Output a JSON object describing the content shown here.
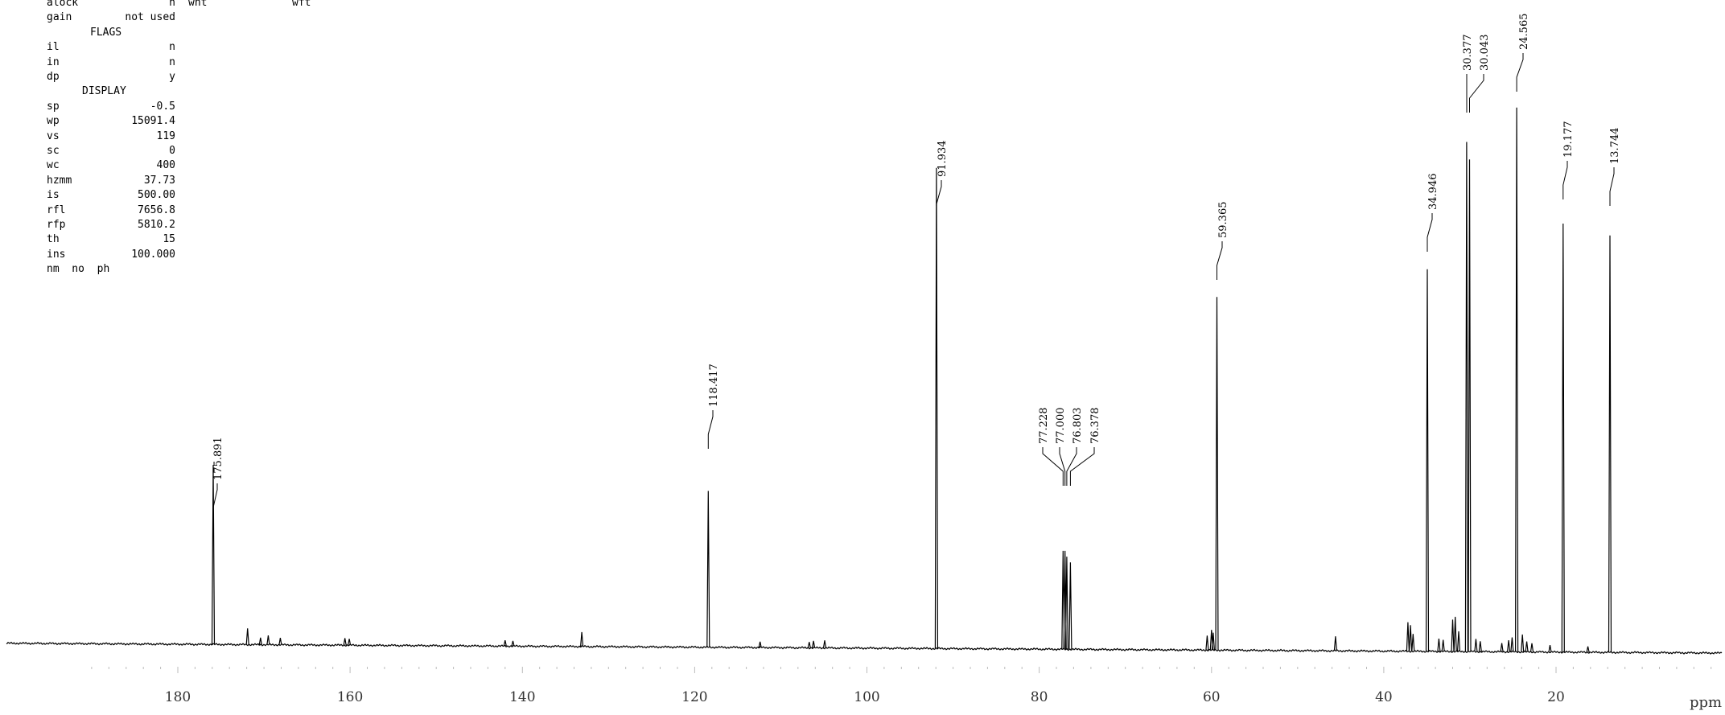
{
  "params": {
    "rows": [
      {
        "key": "alock",
        "value": "n"
      },
      {
        "key": "gain",
        "value": "not used"
      },
      {
        "header": "FLAGS"
      },
      {
        "key": "il",
        "value": "n"
      },
      {
        "key": "in",
        "value": "n"
      },
      {
        "key": "dp",
        "value": "y"
      },
      {
        "header": "DISPLAY"
      },
      {
        "key": "sp",
        "value": "-0.5"
      },
      {
        "key": "wp",
        "value": "15091.4"
      },
      {
        "key": "vs",
        "value": "119"
      },
      {
        "key": "sc",
        "value": "0"
      },
      {
        "key": "wc",
        "value": "400"
      },
      {
        "key": "hzmm",
        "value": "37.73"
      },
      {
        "key": "is",
        "value": "500.00"
      },
      {
        "key": "rfl",
        "value": "7656.8"
      },
      {
        "key": "rfp",
        "value": "5810.2"
      },
      {
        "key": "th",
        "value": "15"
      },
      {
        "key": "ins",
        "value": "100.000"
      }
    ],
    "footer": "nm  no  ph",
    "extra1": "wnt",
    "extra2": "wft"
  },
  "chart_data": {
    "type": "line",
    "x_axis": {
      "unit": "ppm",
      "range": [
        -8.5,
        200.5
      ],
      "reversed": true,
      "ticks": [
        180,
        160,
        140,
        120,
        100,
        80,
        60,
        40,
        20
      ],
      "tick_labels": [
        "180",
        "160",
        "140",
        "120",
        "100",
        "80",
        "60",
        "40",
        "20"
      ]
    },
    "grid": false,
    "peaks": [
      {
        "ppm": 175.891,
        "label": "175.891",
        "intensity": 0.31
      },
      {
        "ppm": 118.417,
        "label": "118.417",
        "intensity": 0.27
      },
      {
        "ppm": 91.934,
        "label": "91.934",
        "intensity": 0.83
      },
      {
        "ppm": 77.228,
        "label": "77.228",
        "intensity": 0.17
      },
      {
        "ppm": 77.0,
        "label": "77.000",
        "intensity": 0.17
      },
      {
        "ppm": 76.803,
        "label": "76.803",
        "intensity": 0.16
      },
      {
        "ppm": 76.378,
        "label": "76.378",
        "intensity": 0.15
      },
      {
        "ppm": 59.365,
        "label": "59.365",
        "intensity": 0.61
      },
      {
        "ppm": 34.946,
        "label": "34.946",
        "intensity": 0.66
      },
      {
        "ppm": 30.377,
        "label": "30.377",
        "intensity": 0.88
      },
      {
        "ppm": 30.043,
        "label": "30.043",
        "intensity": 0.85
      },
      {
        "ppm": 24.565,
        "label": "24.565",
        "intensity": 0.94
      },
      {
        "ppm": 19.177,
        "label": "19.177",
        "intensity": 0.74
      },
      {
        "ppm": 13.744,
        "label": "13.744",
        "intensity": 0.72
      }
    ],
    "minor_peaks": [
      {
        "ppm": 171.9,
        "intensity": 0.028
      },
      {
        "ppm": 170.4,
        "intensity": 0.012
      },
      {
        "ppm": 169.5,
        "intensity": 0.016
      },
      {
        "ppm": 168.1,
        "intensity": 0.012
      },
      {
        "ppm": 160.6,
        "intensity": 0.012
      },
      {
        "ppm": 160.1,
        "intensity": 0.011
      },
      {
        "ppm": 142.0,
        "intensity": 0.01
      },
      {
        "ppm": 141.1,
        "intensity": 0.009
      },
      {
        "ppm": 133.1,
        "intensity": 0.025
      },
      {
        "ppm": 112.4,
        "intensity": 0.01
      },
      {
        "ppm": 106.7,
        "intensity": 0.01
      },
      {
        "ppm": 106.2,
        "intensity": 0.012
      },
      {
        "ppm": 104.9,
        "intensity": 0.013
      },
      {
        "ppm": 60.5,
        "intensity": 0.025
      },
      {
        "ppm": 60.0,
        "intensity": 0.035
      },
      {
        "ppm": 59.8,
        "intensity": 0.03
      },
      {
        "ppm": 45.6,
        "intensity": 0.025
      },
      {
        "ppm": 37.2,
        "intensity": 0.05
      },
      {
        "ppm": 36.9,
        "intensity": 0.045
      },
      {
        "ppm": 36.6,
        "intensity": 0.03
      },
      {
        "ppm": 33.6,
        "intensity": 0.022
      },
      {
        "ppm": 33.1,
        "intensity": 0.02
      },
      {
        "ppm": 32.0,
        "intensity": 0.055
      },
      {
        "ppm": 31.7,
        "intensity": 0.06
      },
      {
        "ppm": 31.3,
        "intensity": 0.035
      },
      {
        "ppm": 29.3,
        "intensity": 0.022
      },
      {
        "ppm": 28.8,
        "intensity": 0.018
      },
      {
        "ppm": 26.3,
        "intensity": 0.015
      },
      {
        "ppm": 25.5,
        "intensity": 0.02
      },
      {
        "ppm": 25.1,
        "intensity": 0.025
      },
      {
        "ppm": 23.9,
        "intensity": 0.03
      },
      {
        "ppm": 23.4,
        "intensity": 0.018
      },
      {
        "ppm": 22.8,
        "intensity": 0.015
      },
      {
        "ppm": 20.7,
        "intensity": 0.012
      },
      {
        "ppm": 16.3,
        "intensity": 0.01
      }
    ]
  }
}
